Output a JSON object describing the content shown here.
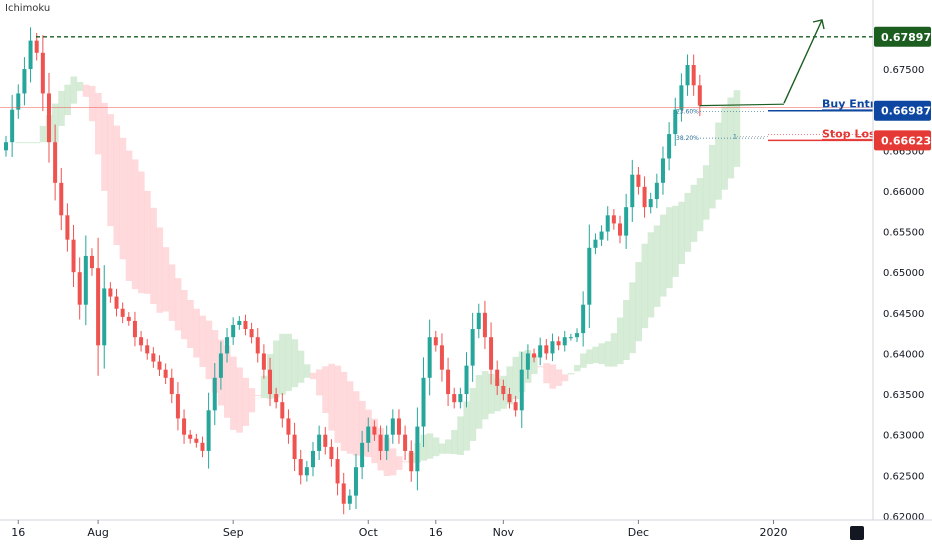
{
  "indicator_label": "Ichimoku",
  "colors": {
    "up": "#26a69a",
    "down": "#ef5350",
    "target": "#1b5e20",
    "buy": "#0d47a1",
    "stop": "#e53935",
    "cloud_bull": "#c8e6c9",
    "cloud_bear": "#ffcdd2"
  },
  "chart_data": {
    "type": "candlestick",
    "title": "",
    "xlabel": "",
    "ylabel": "",
    "ylim": [
      0.6195,
      0.6835
    ],
    "y_ticks": [
      "0.67500",
      "0.67000",
      "0.66500",
      "0.66000",
      "0.65500",
      "0.65000",
      "0.64500",
      "0.64000",
      "0.63500",
      "0.63000",
      "0.62500",
      "0.62000"
    ],
    "x_ticks": [
      {
        "label": "16",
        "i": 2
      },
      {
        "label": "Aug",
        "i": 15
      },
      {
        "label": "Sep",
        "i": 37
      },
      {
        "label": "Oct",
        "i": 59
      },
      {
        "label": "16",
        "i": 70
      },
      {
        "label": "Nov",
        "i": 81
      },
      {
        "label": "Dec",
        "i": 103
      },
      {
        "label": "2020",
        "i": 125
      }
    ],
    "close": [
      0.666,
      0.67,
      0.672,
      0.675,
      0.6785,
      0.677,
      0.672,
      0.666,
      0.661,
      0.657,
      0.654,
      0.65,
      0.646,
      0.652,
      0.6505,
      0.641,
      0.648,
      0.647,
      0.6455,
      0.6445,
      0.644,
      0.642,
      0.641,
      0.64,
      0.639,
      0.638,
      0.637,
      0.635,
      0.632,
      0.63,
      0.6295,
      0.629,
      0.628,
      0.633,
      0.637,
      0.64,
      0.642,
      0.6435,
      0.644,
      0.643,
      0.642,
      0.64,
      0.638,
      0.635,
      0.634,
      0.632,
      0.63,
      0.627,
      0.625,
      0.626,
      0.628,
      0.63,
      0.6285,
      0.627,
      0.624,
      0.6215,
      0.6225,
      0.626,
      0.629,
      0.631,
      0.63,
      0.628,
      0.63,
      0.632,
      0.63,
      0.628,
      0.6255,
      0.631,
      0.637,
      0.642,
      0.641,
      0.638,
      0.635,
      0.634,
      0.635,
      0.6385,
      0.643,
      0.645,
      0.642,
      0.638,
      0.636,
      0.635,
      0.634,
      0.633,
      0.638,
      0.64,
      0.6395,
      0.641,
      0.64,
      0.6415,
      0.641,
      0.642,
      0.642,
      0.6425,
      0.646,
      0.653,
      0.654,
      0.655,
      0.657,
      0.656,
      0.6545,
      0.658,
      0.662,
      0.6605,
      0.658,
      0.659,
      0.661,
      0.664,
      0.667,
      0.67,
      0.673,
      0.6755,
      0.673,
      0.6705
    ],
    "annotations": {
      "target": {
        "price": 0.67897,
        "label": "0.67897"
      },
      "buy_entry": {
        "price": 0.66987,
        "label": "0.66987",
        "text": "Buy Entry"
      },
      "stop_loss": {
        "price": 0.66623,
        "label": "0.66623",
        "text": "Stop Loss"
      },
      "fib_236": {
        "price": 0.6698,
        "text": "23.60%"
      },
      "fib_382": {
        "price": 0.6665,
        "text": "38.20%"
      },
      "fib_1": {
        "price": 0.6667,
        "text": "1"
      }
    }
  }
}
